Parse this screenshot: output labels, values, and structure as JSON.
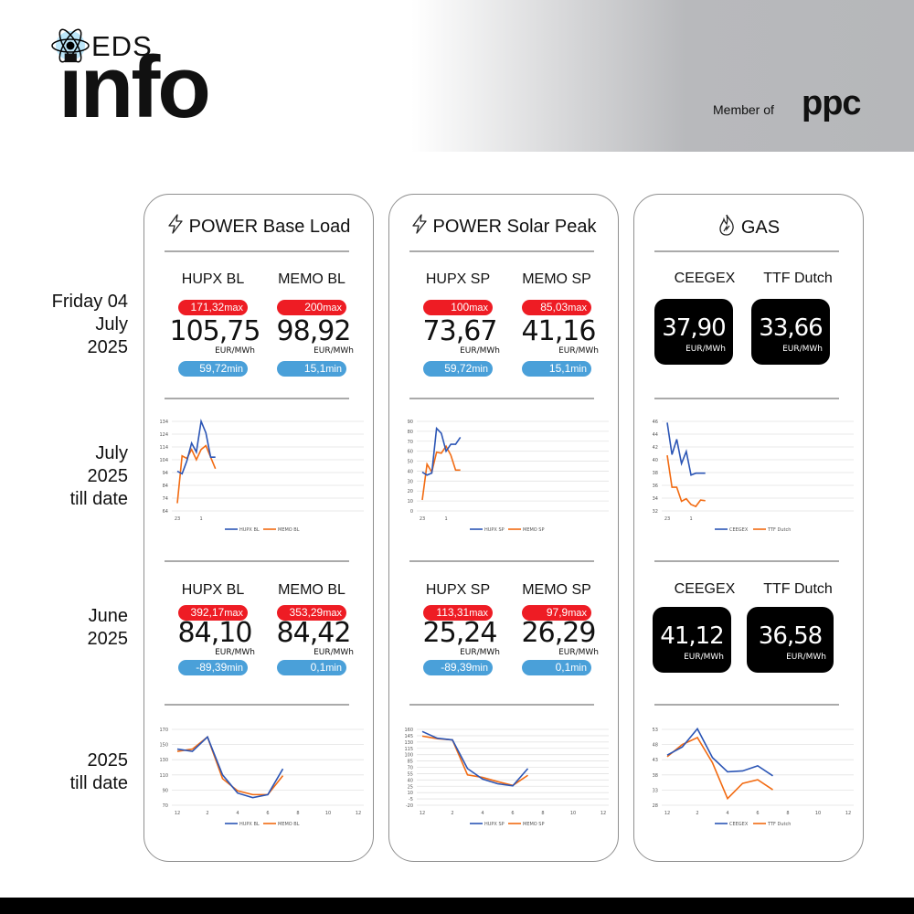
{
  "header": {
    "logo_eds": "EDS",
    "logo_info": "info",
    "member_of": "Member of",
    "partner": "ppc"
  },
  "row_labels": {
    "today": [
      "Friday 04",
      "July",
      "2025"
    ],
    "month_chart": [
      "July",
      "2025",
      "till date"
    ],
    "prev_month": [
      "June",
      "2025"
    ],
    "year_chart": [
      "2025",
      "till date"
    ]
  },
  "colors": {
    "max": "#ee1c24",
    "min": "#4aa0d9",
    "series1": "#2b55b5",
    "series2": "#f26b12"
  },
  "cards": [
    {
      "title": "POWER Base Load",
      "icon": "lightning-icon",
      "today": [
        {
          "name": "HUPX BL",
          "max": "171,32",
          "value": "105,75",
          "unit": "EUR/MWh",
          "min": "59,72"
        },
        {
          "name": "MEMO BL",
          "max": "200",
          "value": "98,92",
          "unit": "EUR/MWh",
          "min": "15,1"
        }
      ],
      "month": [
        {
          "name": "HUPX BL",
          "max": "392,17",
          "value": "84,10",
          "unit": "EUR/MWh",
          "min": "-89,39"
        },
        {
          "name": "MEMO BL",
          "max": "353,29",
          "value": "84,42",
          "unit": "EUR/MWh",
          "min": "0,1"
        }
      ]
    },
    {
      "title": "POWER Solar Peak",
      "icon": "lightning-icon",
      "today": [
        {
          "name": "HUPX SP",
          "max": "100",
          "value": "73,67",
          "unit": "EUR/MWh",
          "min": "59,72"
        },
        {
          "name": "MEMO SP",
          "max": "85,03",
          "value": "41,16",
          "unit": "EUR/MWh",
          "min": "15,1"
        }
      ],
      "month": [
        {
          "name": "HUPX SP",
          "max": "113,31",
          "value": "25,24",
          "unit": "EUR/MWh",
          "min": "-89,39"
        },
        {
          "name": "MEMO SP",
          "max": "97,9",
          "value": "26,29",
          "unit": "EUR/MWh",
          "min": "0,1"
        }
      ]
    },
    {
      "title": "GAS",
      "icon": "flame-icon",
      "today": [
        {
          "name": "CEEGEX",
          "value": "37,90",
          "unit": "EUR/MWh"
        },
        {
          "name": "TTF Dutch",
          "value": "33,66",
          "unit": "EUR/MWh"
        }
      ],
      "month": [
        {
          "name": "CEEGEX",
          "value": "41,12",
          "unit": "EUR/MWh"
        },
        {
          "name": "TTF Dutch",
          "value": "36,58",
          "unit": "EUR/MWh"
        }
      ]
    }
  ],
  "labels": {
    "max": "max",
    "min": "min"
  },
  "chart_data": [
    {
      "type": "line",
      "grid": true,
      "legend": "bottom",
      "ylim": [
        64,
        134
      ],
      "yticks": [
        64,
        74,
        84,
        94,
        104,
        114,
        124,
        134
      ],
      "xlim": [
        0,
        38
      ],
      "xticks": [
        {
          "at": 0,
          "label": "23"
        },
        {
          "at": 5,
          "label": "1"
        }
      ],
      "series": [
        {
          "name": "HUPX BL",
          "values": [
            95,
            93,
            103,
            117,
            110,
            134,
            125,
            106,
            106
          ]
        },
        {
          "name": "MEMO BL",
          "values": [
            70,
            107,
            105,
            112,
            104,
            112,
            115,
            106,
            97
          ]
        }
      ]
    },
    {
      "type": "line",
      "grid": true,
      "legend": "bottom",
      "ylim": [
        0,
        90
      ],
      "yticks": [
        0,
        10,
        20,
        30,
        40,
        50,
        60,
        70,
        80,
        90
      ],
      "xlim": [
        0,
        38
      ],
      "xticks": [
        {
          "at": 0,
          "label": "23"
        },
        {
          "at": 5,
          "label": "1"
        }
      ],
      "series": [
        {
          "name": "HUPX SP",
          "values": [
            39,
            36,
            38,
            83,
            78,
            60,
            67,
            67,
            74
          ]
        },
        {
          "name": "MEMO SP",
          "values": [
            11,
            47,
            39,
            59,
            58,
            65,
            56,
            41,
            41
          ]
        }
      ]
    },
    {
      "type": "line",
      "grid": true,
      "legend": "bottom",
      "ylim": [
        32,
        46
      ],
      "yticks": [
        32,
        34,
        36,
        38,
        40,
        42,
        44,
        46
      ],
      "xlim": [
        0,
        38
      ],
      "xticks": [
        {
          "at": 0,
          "label": "23"
        },
        {
          "at": 5,
          "label": "1"
        }
      ],
      "series": [
        {
          "name": "CEEGEX",
          "values": [
            45.8,
            40.8,
            43.2,
            39.4,
            41.3,
            37.6,
            37.9,
            37.9,
            37.9
          ]
        },
        {
          "name": "TTF Dutch",
          "values": [
            40.7,
            35.7,
            35.7,
            33.5,
            33.9,
            33.0,
            32.7,
            33.7,
            33.6
          ]
        }
      ]
    },
    {
      "type": "line",
      "grid": true,
      "legend": "bottom",
      "ylim": [
        70,
        170
      ],
      "yticks": [
        70,
        90,
        110,
        130,
        150,
        170
      ],
      "xlim": [
        0,
        12
      ],
      "xticks": [
        {
          "at": 0,
          "label": "12"
        },
        {
          "at": 2,
          "label": "2"
        },
        {
          "at": 4,
          "label": "4"
        },
        {
          "at": 6,
          "label": "6"
        },
        {
          "at": 8,
          "label": "8"
        },
        {
          "at": 10,
          "label": "10"
        },
        {
          "at": 12,
          "label": "12"
        }
      ],
      "series": [
        {
          "name": "HUPX BL",
          "values": [
            144,
            141,
            160,
            110,
            86,
            80,
            84,
            118
          ]
        },
        {
          "name": "MEMO BL",
          "values": [
            141,
            144,
            160,
            105,
            89,
            84,
            84,
            109
          ]
        }
      ]
    },
    {
      "type": "line",
      "grid": true,
      "legend": "bottom",
      "ylim": [
        -20,
        160
      ],
      "yticks": [
        -20,
        -5,
        10,
        25,
        40,
        55,
        70,
        85,
        100,
        115,
        130,
        145,
        160
      ],
      "xlim": [
        0,
        12
      ],
      "xticks": [
        {
          "at": 0,
          "label": "12"
        },
        {
          "at": 2,
          "label": "2"
        },
        {
          "at": 4,
          "label": "4"
        },
        {
          "at": 6,
          "label": "6"
        },
        {
          "at": 8,
          "label": "8"
        },
        {
          "at": 10,
          "label": "10"
        },
        {
          "at": 12,
          "label": "12"
        }
      ],
      "series": [
        {
          "name": "HUPX SP",
          "values": [
            155,
            139,
            135,
            67,
            42,
            31,
            26,
            67
          ]
        },
        {
          "name": "MEMO SP",
          "values": [
            144,
            138,
            135,
            52,
            46,
            36,
            27,
            51
          ]
        }
      ]
    },
    {
      "type": "line",
      "grid": true,
      "legend": "bottom",
      "ylim": [
        28,
        53
      ],
      "yticks": [
        28,
        33,
        38,
        43,
        48,
        53
      ],
      "xlim": [
        0,
        12
      ],
      "xticks": [
        {
          "at": 0,
          "label": "12"
        },
        {
          "at": 2,
          "label": "2"
        },
        {
          "at": 4,
          "label": "4"
        },
        {
          "at": 6,
          "label": "6"
        },
        {
          "at": 8,
          "label": "8"
        },
        {
          "at": 10,
          "label": "10"
        },
        {
          "at": 12,
          "label": "12"
        }
      ],
      "series": [
        {
          "name": "CEEGEX",
          "values": [
            44.5,
            47.2,
            53.2,
            43.7,
            39,
            39.3,
            41,
            37.7
          ]
        },
        {
          "name": "TTF Dutch",
          "values": [
            44,
            48,
            50.3,
            42,
            30.2,
            35.2,
            36.4,
            33.1
          ]
        }
      ]
    }
  ]
}
